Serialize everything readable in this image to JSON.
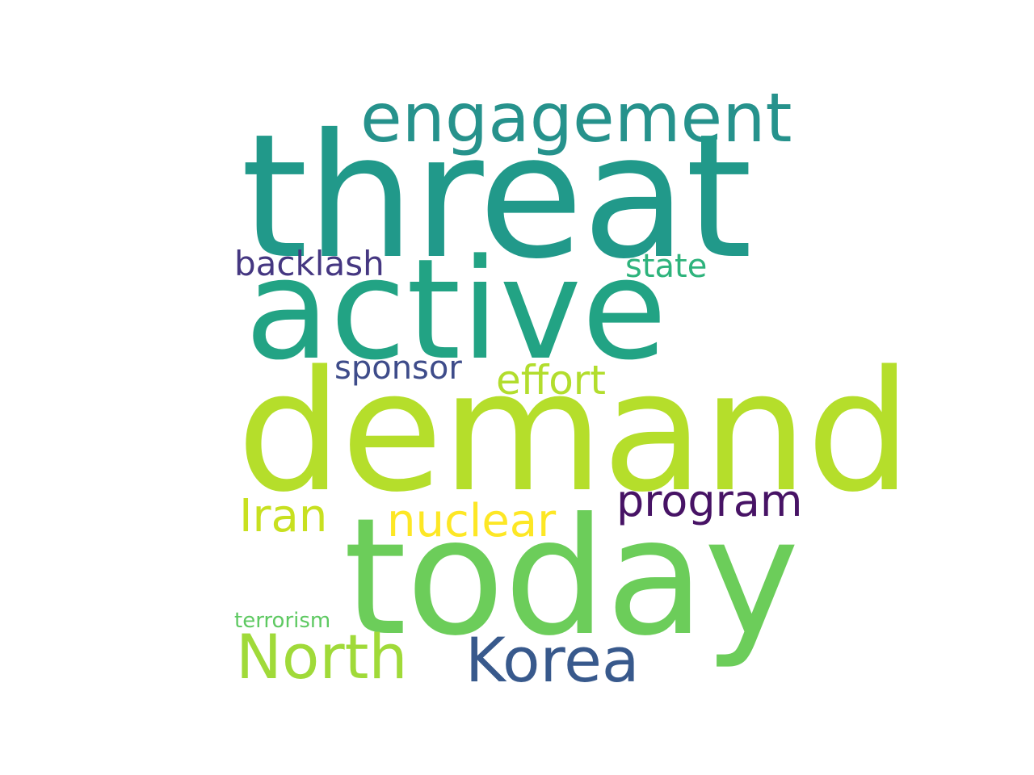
{
  "word_cloud": {
    "words": [
      {
        "key": "threat",
        "text": "threat",
        "color": "#21998a"
      },
      {
        "key": "engagement",
        "text": "engagement",
        "color": "#26928c"
      },
      {
        "key": "active",
        "text": "active",
        "color": "#22a384"
      },
      {
        "key": "backlash",
        "text": "backlash",
        "color": "#453781"
      },
      {
        "key": "state",
        "text": "state",
        "color": "#2eb37c"
      },
      {
        "key": "sponsor",
        "text": "sponsor",
        "color": "#3e4c8a"
      },
      {
        "key": "effort",
        "text": "effort",
        "color": "#b2dd2d"
      },
      {
        "key": "demand",
        "text": "demand",
        "color": "#b5de2b"
      },
      {
        "key": "program",
        "text": "program",
        "color": "#471365"
      },
      {
        "key": "iran",
        "text": "Iran",
        "color": "#c8e020"
      },
      {
        "key": "nuclear",
        "text": "nuclear",
        "color": "#fde725"
      },
      {
        "key": "today",
        "text": "today",
        "color": "#6ccd5a"
      },
      {
        "key": "terrorism",
        "text": "terrorism",
        "color": "#5ec962"
      },
      {
        "key": "north",
        "text": "North",
        "color": "#a0da39"
      },
      {
        "key": "korea",
        "text": "Korea",
        "color": "#38598c"
      }
    ]
  }
}
